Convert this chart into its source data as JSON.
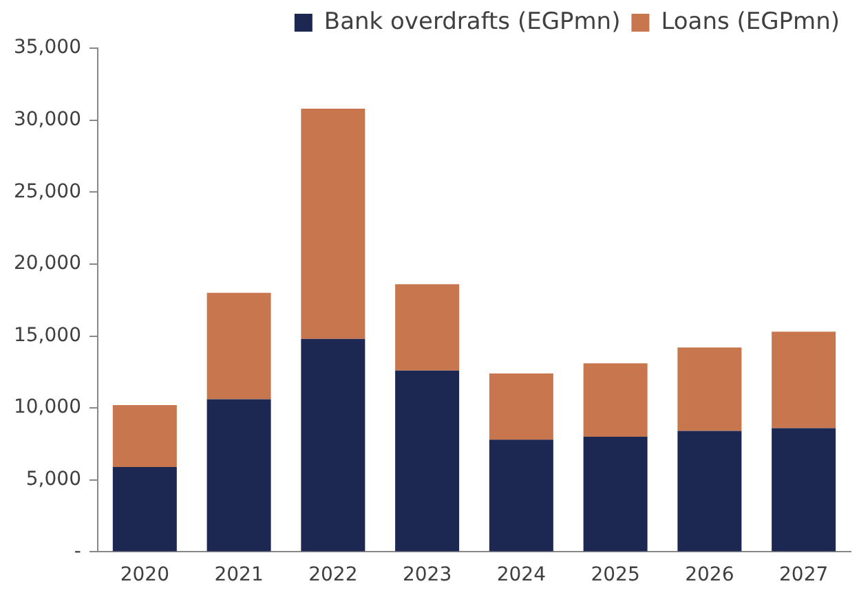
{
  "chart_data": {
    "type": "bar",
    "stacked": true,
    "categories": [
      "2020",
      "2021",
      "2022",
      "2023",
      "2024",
      "2025",
      "2026",
      "2027"
    ],
    "series": [
      {
        "name": "Bank overdrafts (EGPmn)",
        "color": "#1c2752",
        "values": [
          5900,
          10600,
          14800,
          12600,
          7800,
          8000,
          8400,
          8600
        ]
      },
      {
        "name": "Loans (EGPmn)",
        "color": "#c8764e",
        "values": [
          4300,
          7400,
          16000,
          6000,
          4600,
          5100,
          5800,
          6700
        ]
      }
    ],
    "ylim": [
      0,
      35000
    ],
    "yticks": [
      {
        "value": 0,
        "label": "-"
      },
      {
        "value": 5000,
        "label": "5,000"
      },
      {
        "value": 10000,
        "label": "10,000"
      },
      {
        "value": 15000,
        "label": "15,000"
      },
      {
        "value": 20000,
        "label": "20,000"
      },
      {
        "value": 25000,
        "label": "25,000"
      },
      {
        "value": 30000,
        "label": "30,000"
      },
      {
        "value": 35000,
        "label": "35,000"
      }
    ],
    "grid": false,
    "legend": "top"
  }
}
